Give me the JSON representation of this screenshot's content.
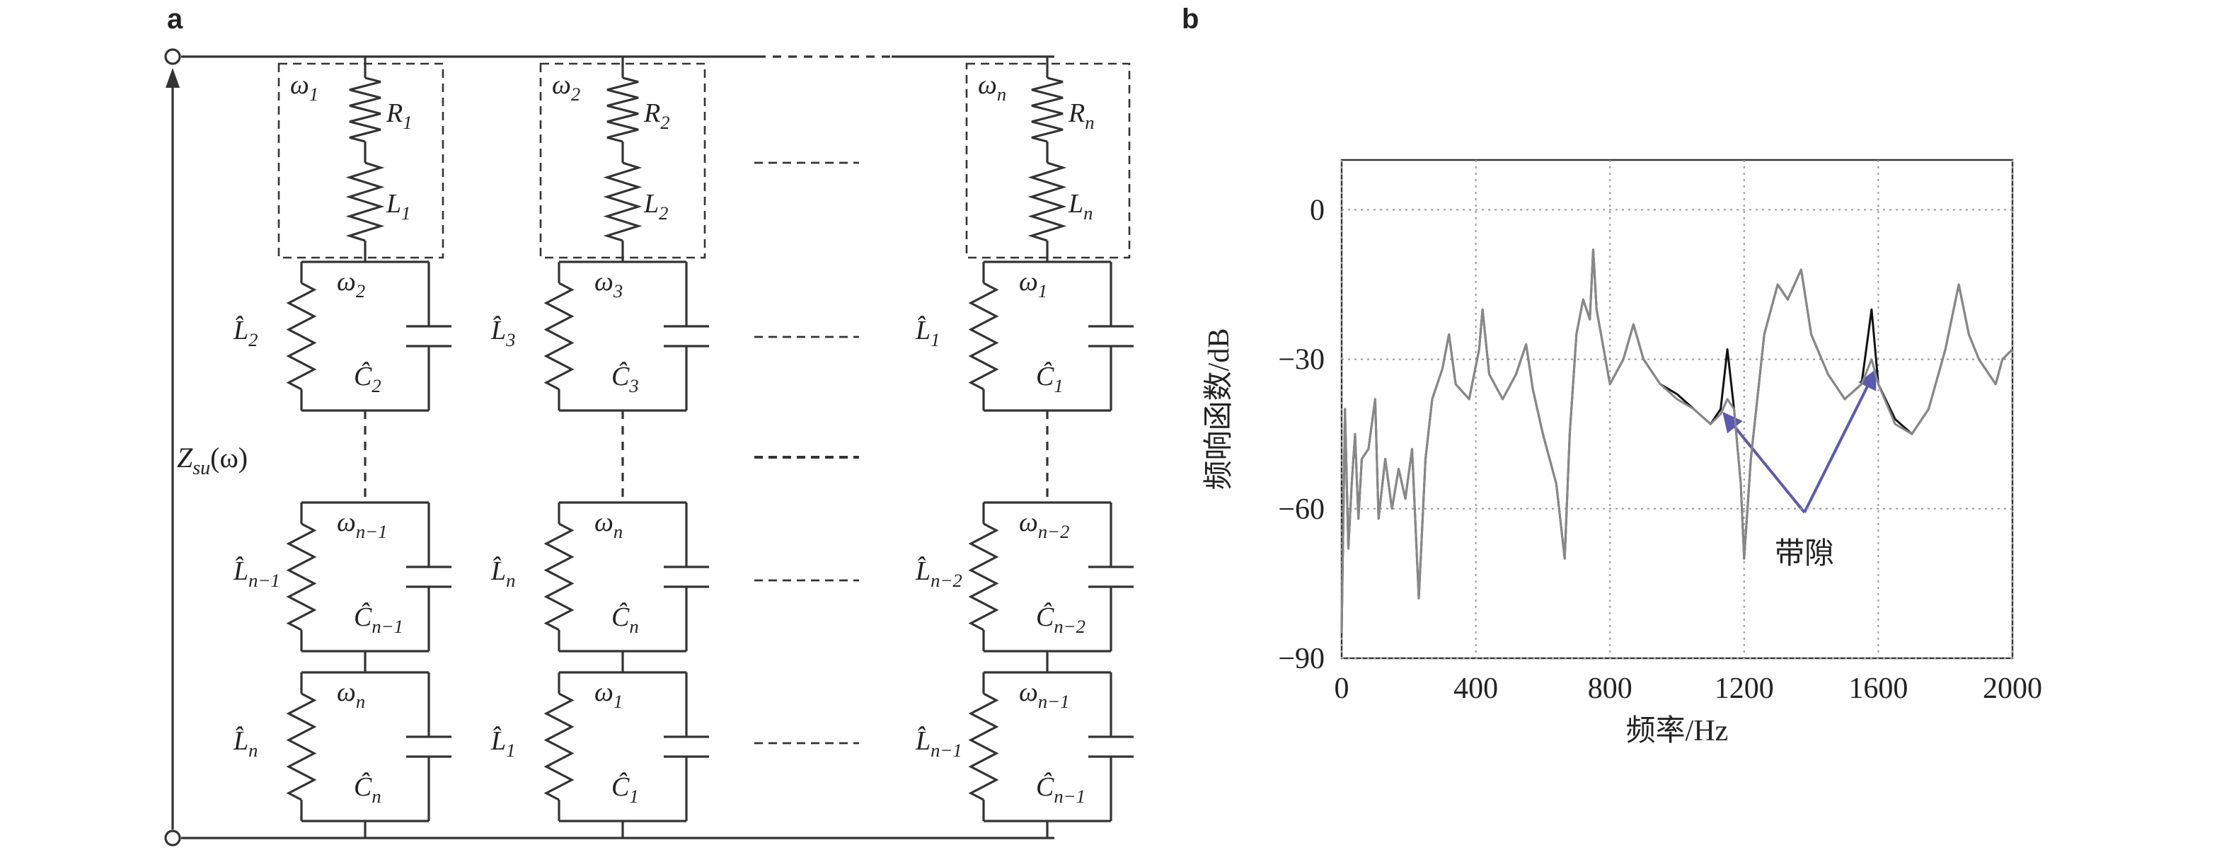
{
  "panel_labels": [
    "a",
    "b"
  ],
  "diagram": {
    "impedance_label": {
      "b": "Z",
      "s": "su",
      "t": "(ω)"
    },
    "columns": [
      {
        "box": {
          "freq": {
            "b": "ω",
            "s": "1"
          },
          "resistor": {
            "b": "R",
            "s": "1"
          },
          "inductor": {
            "b": "L",
            "s": "1"
          }
        },
        "cells": [
          {
            "freq": {
              "b": "ω",
              "s": "2"
            },
            "inductor": {
              "b": "L̂",
              "s": "2"
            },
            "capacitor": {
              "b": "Ĉ",
              "s": "2"
            }
          },
          {
            "freq": {
              "b": "ω",
              "s": "n−1"
            },
            "inductor": {
              "b": "L̂",
              "s": "n−1"
            },
            "capacitor": {
              "b": "Ĉ",
              "s": "n−1"
            }
          },
          {
            "freq": {
              "b": "ω",
              "s": "n"
            },
            "inductor": {
              "b": "L̂",
              "s": "n"
            },
            "capacitor": {
              "b": "Ĉ",
              "s": "n"
            }
          }
        ]
      },
      {
        "box": {
          "freq": {
            "b": "ω",
            "s": "2"
          },
          "resistor": {
            "b": "R",
            "s": "2"
          },
          "inductor": {
            "b": "L",
            "s": "2"
          }
        },
        "cells": [
          {
            "freq": {
              "b": "ω",
              "s": "3"
            },
            "inductor": {
              "b": "L̂",
              "s": "3"
            },
            "capacitor": {
              "b": "Ĉ",
              "s": "3"
            }
          },
          {
            "freq": {
              "b": "ω",
              "s": "n"
            },
            "inductor": {
              "b": "L̂",
              "s": "n"
            },
            "capacitor": {
              "b": "Ĉ",
              "s": "n"
            }
          },
          {
            "freq": {
              "b": "ω",
              "s": "1"
            },
            "inductor": {
              "b": "L̂",
              "s": "1"
            },
            "capacitor": {
              "b": "Ĉ",
              "s": "1"
            }
          }
        ]
      },
      {
        "box": {
          "freq": {
            "b": "ω",
            "s": "n"
          },
          "resistor": {
            "b": "R",
            "s": "n"
          },
          "inductor": {
            "b": "L",
            "s": "n"
          }
        },
        "cells": [
          {
            "freq": {
              "b": "ω",
              "s": "1"
            },
            "inductor": {
              "b": "L̂",
              "s": "1"
            },
            "capacitor": {
              "b": "Ĉ",
              "s": "1"
            }
          },
          {
            "freq": {
              "b": "ω",
              "s": "n−2"
            },
            "inductor": {
              "b": "L̂",
              "s": "n−2"
            },
            "capacitor": {
              "b": "Ĉ",
              "s": "n−2"
            }
          },
          {
            "freq": {
              "b": "ω",
              "s": "n−1"
            },
            "inductor": {
              "b": "L̂",
              "s": "n−1"
            },
            "capacitor": {
              "b": "Ĉ",
              "s": "n−1"
            }
          }
        ]
      }
    ]
  },
  "chart_data": {
    "type": "line",
    "x_label": "频率/Hz",
    "y_label": "频响函数/dB",
    "annotation": "带隙",
    "x": [
      0,
      10,
      20,
      30,
      40,
      50,
      60,
      80,
      100,
      110,
      130,
      150,
      170,
      190,
      210,
      230,
      250,
      270,
      300,
      320,
      340,
      380,
      410,
      420,
      440,
      480,
      520,
      550,
      570,
      600,
      640,
      665,
      680,
      700,
      720,
      740,
      750,
      760,
      800,
      840,
      870,
      900,
      950,
      1000,
      1050,
      1100,
      1130,
      1150,
      1170,
      1190,
      1200,
      1220,
      1260,
      1300,
      1330,
      1370,
      1400,
      1450,
      1500,
      1550,
      1580,
      1600,
      1650,
      1700,
      1750,
      1800,
      1840,
      1870,
      1900,
      1950,
      1970,
      2000
    ],
    "series": [
      {
        "color": "#111111",
        "values": [
          -85,
          -40,
          -68,
          -55,
          -45,
          -62,
          -50,
          -48,
          -38,
          -62,
          -50,
          -60,
          -52,
          -58,
          -48,
          -78,
          -50,
          -38,
          -32,
          -25,
          -35,
          -38,
          -28,
          -20,
          -33,
          -38,
          -33,
          -27,
          -36,
          -45,
          -55,
          -70,
          -45,
          -25,
          -18,
          -22,
          -8,
          -20,
          -35,
          -30,
          -23,
          -30,
          -35,
          -37,
          -40,
          -43,
          -40,
          -28,
          -40,
          -55,
          -70,
          -50,
          -25,
          -15,
          -18,
          -12,
          -25,
          -33,
          -38,
          -35,
          -20,
          -35,
          -42,
          -45,
          -40,
          -28,
          -15,
          -25,
          -30,
          -35,
          -30,
          -28
        ]
      },
      {
        "color": "#888888",
        "values": [
          -85,
          -40,
          -68,
          -55,
          -45,
          -62,
          -50,
          -48,
          -38,
          -62,
          -50,
          -60,
          -52,
          -58,
          -48,
          -78,
          -50,
          -38,
          -32,
          -25,
          -35,
          -38,
          -28,
          -20,
          -33,
          -38,
          -33,
          -27,
          -36,
          -45,
          -55,
          -70,
          -45,
          -25,
          -18,
          -22,
          -8,
          -20,
          -35,
          -30,
          -23,
          -30,
          -35,
          -38,
          -40,
          -43,
          -41,
          -38,
          -40,
          -55,
          -70,
          -50,
          -25,
          -15,
          -18,
          -12,
          -25,
          -33,
          -38,
          -35,
          -30,
          -35,
          -43,
          -45,
          -40,
          -28,
          -15,
          -25,
          -30,
          -35,
          -30,
          -28
        ]
      }
    ],
    "xlim": [
      0,
      2000
    ],
    "xticks": [
      0,
      400,
      800,
      1200,
      1600,
      2000
    ],
    "ylim": [
      -90,
      10
    ],
    "yticks": [
      {
        "value": -90,
        "label": "−90"
      },
      {
        "value": -60,
        "label": "−60"
      },
      {
        "value": -30,
        "label": "−30"
      },
      0
    ],
    "grid": true
  }
}
